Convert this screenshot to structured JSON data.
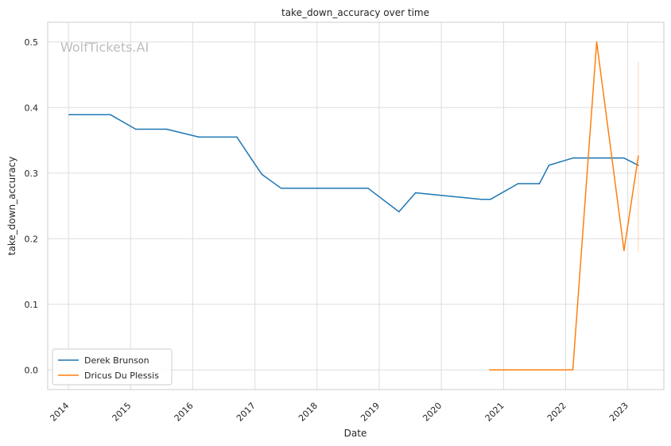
{
  "chart_data": {
    "type": "line",
    "title": "take_down_accuracy over time",
    "xlabel": "Date",
    "ylabel": "take_down_accuracy",
    "watermark": "WolfTickets.AI",
    "x_ticks": [
      "2014",
      "2015",
      "2016",
      "2017",
      "2018",
      "2019",
      "2020",
      "2021",
      "2022",
      "2023"
    ],
    "y_ticks": [
      "0.0",
      "0.1",
      "0.2",
      "0.3",
      "0.4",
      "0.5"
    ],
    "xlim": [
      "2013-09-01",
      "2023-08-01"
    ],
    "ylim": [
      -0.03,
      0.53
    ],
    "grid": true,
    "legend_position": "lower-left",
    "series": [
      {
        "name": "Derek Brunson",
        "color": "#1f77b4",
        "points": [
          [
            "2014-01-04",
            0.389
          ],
          [
            "2014-09-05",
            0.389
          ],
          [
            "2015-01-31",
            0.367
          ],
          [
            "2015-08-01",
            0.367
          ],
          [
            "2016-02-06",
            0.355
          ],
          [
            "2016-09-17",
            0.355
          ],
          [
            "2016-12-10",
            0.322
          ],
          [
            "2017-02-11",
            0.298
          ],
          [
            "2017-06-03",
            0.277
          ],
          [
            "2018-10-27",
            0.277
          ],
          [
            "2019-04-27",
            0.241
          ],
          [
            "2019-08-03",
            0.27
          ],
          [
            "2020-08-22",
            0.26
          ],
          [
            "2020-10-17",
            0.26
          ],
          [
            "2021-03-27",
            0.284
          ],
          [
            "2021-07-31",
            0.284
          ],
          [
            "2021-09-25",
            0.312
          ],
          [
            "2022-02-12",
            0.323
          ],
          [
            "2022-12-10",
            0.323
          ],
          [
            "2023-03-04",
            0.312
          ]
        ]
      },
      {
        "name": "Dricus Du Plessis",
        "color": "#ff7f0e",
        "points": [
          [
            "2020-10-11",
            0.0
          ],
          [
            "2022-02-12",
            0.0
          ],
          [
            "2022-07-02",
            0.5
          ],
          [
            "2022-12-10",
            0.182
          ],
          [
            "2023-03-04",
            0.326
          ]
        ],
        "band": {
          "x": "2023-03-04",
          "low": 0.18,
          "high": 0.47
        }
      }
    ]
  }
}
